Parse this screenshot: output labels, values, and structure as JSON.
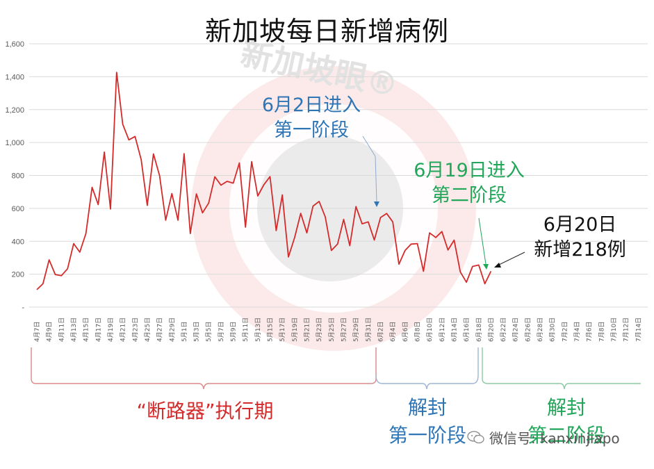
{
  "chart_data": {
    "type": "line",
    "title": "新加坡每日新增病例",
    "xlabel": "",
    "ylabel": "",
    "ylim": [
      0,
      1600
    ],
    "yticks": [
      "-",
      "200",
      "400",
      "600",
      "800",
      "1,000",
      "1,200",
      "1,400",
      "1,600"
    ],
    "grid": true,
    "legend": "none",
    "x_tick_labels": [
      "4月7日",
      "4月9日",
      "4月11日",
      "4月13日",
      "4月15日",
      "4月17日",
      "4月19日",
      "4月21日",
      "4月23日",
      "4月25日",
      "4月27日",
      "4月29日",
      "5月1日",
      "5月3日",
      "5月5日",
      "5月7日",
      "5月9日",
      "5月11日",
      "5月13日",
      "5月15日",
      "5月17日",
      "5月19日",
      "5月21日",
      "5月23日",
      "5月25日",
      "5月27日",
      "5月29日",
      "5月31日",
      "6月2日",
      "6月4日",
      "6月6日",
      "6月8日",
      "6月10日",
      "6月12日",
      "6月14日",
      "6月16日",
      "6月18日",
      "6月20日",
      "6月22日",
      "6月24日",
      "6月26日",
      "6月28日",
      "6月30日",
      "7月2日",
      "7月4日",
      "7月6日",
      "7月8日",
      "7月10日",
      "7月12日",
      "7月14日"
    ],
    "x_start": "4月7日",
    "x_end_data": "6月20日",
    "series": [
      {
        "name": "每日新增病例",
        "color": "#d42a2a",
        "values": [
          106,
          142,
          287,
          198,
          191,
          233,
          386,
          334,
          447,
          728,
          623,
          942,
          596,
          1426,
          1111,
          1016,
          1037,
          897,
          618,
          931,
          799,
          528,
          690,
          528,
          932,
          447,
          688,
          573,
          632,
          792,
          741,
          764,
          753,
          876,
          486,
          884,
          675,
          744,
          793,
          465,
          682,
          305,
          422,
          570,
          451,
          614,
          642,
          548,
          344,
          383,
          533,
          373,
          611,
          506,
          518,
          408,
          544,
          569,
          518,
          261,
          344,
          383,
          386,
          218,
          451,
          423,
          459,
          347,
          407,
          214,
          151,
          247,
          256,
          142,
          218
        ]
      }
    ],
    "annotations": [
      {
        "text_lines": [
          "6月2日进入",
          "第一阶段"
        ],
        "color": "#2e75b6",
        "target": "6月2日"
      },
      {
        "text_lines": [
          "6月19日进入",
          "第二阶段"
        ],
        "color": "#22a65a",
        "target": "6月19日"
      },
      {
        "text_lines": [
          "6月20日",
          "新增218例"
        ],
        "color": "#111111",
        "target": "6月20日",
        "value": 218
      }
    ],
    "periods": [
      {
        "label_lines": [
          "“断路器”执行期"
        ],
        "color": "#d42a2a",
        "range": [
          "4月7日",
          "6月1日"
        ]
      },
      {
        "label_lines": [
          "解封",
          "第一阶段"
        ],
        "color": "#2e75b6",
        "range": [
          "6月2日",
          "6月18日"
        ]
      },
      {
        "label_lines": [
          "解封",
          "第二阶段"
        ],
        "color": "#22a65a",
        "range": [
          "6月19日",
          "7月14日"
        ]
      }
    ]
  },
  "watermark": {
    "text": "新加坡眼®",
    "wechat_label": "微信号: kanxinjiapo"
  }
}
